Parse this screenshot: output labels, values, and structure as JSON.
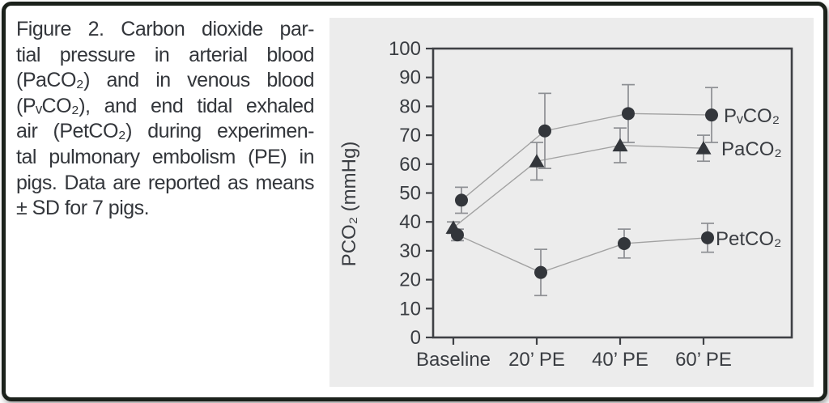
{
  "figure": {
    "caption_lines": [
      "Figure 2.  Carbon dioxide par-",
      "tial pressure in arterial blood",
      "(PaCO₂) and in venous blood",
      "(PᵥCO₂), and end tidal exhaled",
      "air (PetCO₂) during experimen-",
      "tal pulmonary embolism (PE) in",
      "pigs. Data are reported as means",
      "± SD for 7 pigs."
    ]
  },
  "chart_data": {
    "type": "line",
    "title": "",
    "categories": [
      "Baseline",
      "20’ PE",
      "40’ PE",
      "60’ PE"
    ],
    "series": [
      {
        "name": "PᵥCO₂",
        "marker": "circle",
        "values": [
          47.5,
          71.5,
          77.5,
          77.0
        ],
        "sd": [
          4.5,
          13.0,
          10.0,
          9.5
        ]
      },
      {
        "name": "PaCO₂",
        "marker": "triangle",
        "values": [
          38.0,
          61.0,
          66.5,
          65.5
        ],
        "sd": [
          2.0,
          6.5,
          6.0,
          4.5
        ]
      },
      {
        "name": "PetCO₂",
        "marker": "circle",
        "values": [
          35.5,
          22.5,
          32.5,
          34.5
        ],
        "sd": [
          2.0,
          8.0,
          5.0,
          5.0
        ]
      }
    ],
    "xlabel": "",
    "ylabel": "PCO₂ (mmHg)",
    "ylim": [
      0,
      100
    ],
    "ytick_step": 10,
    "y_ticks": [
      0,
      10,
      20,
      30,
      40,
      50,
      60,
      70,
      80,
      90,
      100
    ],
    "grid": false,
    "error_bars": "±SD",
    "legend_position": "right-of-last-point"
  },
  "colors": {
    "panel_bg": "#ececec",
    "marker": "#33363b",
    "axis": "#3f4145",
    "error_bar": "#8d8f93",
    "series_line": "#a2a2a2",
    "text": "#3a3d42",
    "frame_border": "#1b211b"
  }
}
